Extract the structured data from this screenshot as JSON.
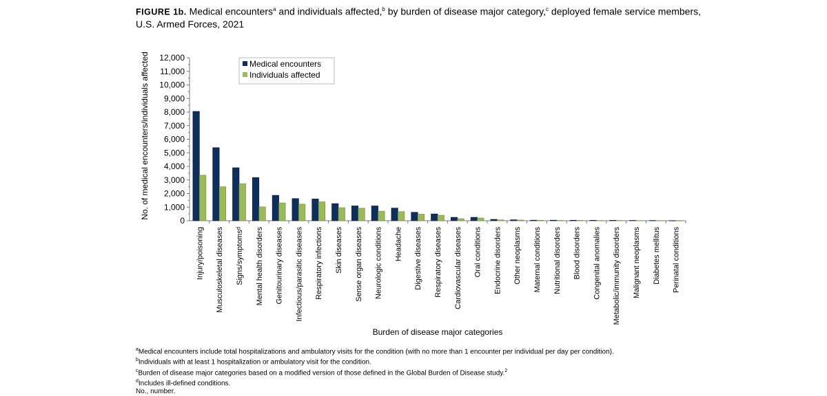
{
  "title": {
    "figure_label": "FIGURE 1b.",
    "text_part1": "Medical encounters",
    "sup_a": "a",
    "text_part2": " and individuals affected,",
    "sup_b": "b",
    "text_part3": " by burden of disease major category,",
    "sup_c": "c",
    "text_part4": " deployed female service members, U.S. Armed Forces, 2021"
  },
  "chart_data": {
    "type": "bar",
    "xlabel": "Burden of disease major categories",
    "ylabel": "No. of medical encounters/individuals affected",
    "ylim": [
      0,
      12000
    ],
    "yticks": [
      0,
      1000,
      2000,
      3000,
      4000,
      5000,
      6000,
      7000,
      8000,
      9000,
      10000,
      11000,
      12000
    ],
    "ytick_labels": [
      "0",
      "1,000",
      "2,000",
      "3,000",
      "4,000",
      "5,000",
      "6,000",
      "7,000",
      "8,000",
      "9,000",
      "10,000",
      "11,000",
      "12,000"
    ],
    "grid": false,
    "legend_position": "top-center",
    "categories": [
      "Injury/poisoning",
      "Musculoskeletal diseases",
      "Signs/symptomsᵈ",
      "Mental health disorders",
      "Genitourinary diseases",
      "Infectious/parasitic diseases",
      "Respiratory infections",
      "Skin diseases",
      "Sense organ diseases",
      "Neurologic conditions",
      "Headache",
      "Digestive diseases",
      "Respiratory diseases",
      "Cardiovascular diseases",
      "Oral conditions",
      "Endocrine disorders",
      "Other neoplasms",
      "Maternal conditions",
      "Nutritional disorders",
      "Blood disorders",
      "Congenital anomalies",
      "Metabolic/immunity disorders",
      "Malignant neoplasms",
      "Diabetes mellitus",
      "Perinatal conditions"
    ],
    "series": [
      {
        "name": "Medical encounters",
        "color": "#0d2f5e",
        "values": [
          8050,
          5380,
          3900,
          3180,
          1870,
          1630,
          1600,
          1260,
          1090,
          1090,
          930,
          620,
          500,
          250,
          250,
          100,
          70,
          40,
          40,
          35,
          30,
          30,
          25,
          20,
          10
        ]
      },
      {
        "name": "Individuals affected",
        "color": "#9bbb59",
        "values": [
          3350,
          2500,
          2730,
          1020,
          1310,
          1220,
          1390,
          960,
          920,
          700,
          670,
          480,
          400,
          150,
          200,
          60,
          50,
          30,
          25,
          25,
          20,
          20,
          15,
          10,
          5
        ]
      }
    ]
  },
  "footnotes": [
    {
      "mark": "a",
      "text": "Medical encounters include total hospitalizations and ambulatory visits for the condition (with no more than 1 encounter per individual per day per condition)."
    },
    {
      "mark": "b",
      "text": "Individuals with at least 1 hospitalization or ambulatory visit for the condition."
    },
    {
      "mark": "c",
      "text": "Burden of disease major categories based on a modified version of those defined in the Global Burden of Disease study.",
      "ref": "2"
    },
    {
      "mark": "d",
      "text": "Includes ill-defined conditions."
    },
    {
      "mark": "",
      "text": "No., number."
    }
  ]
}
